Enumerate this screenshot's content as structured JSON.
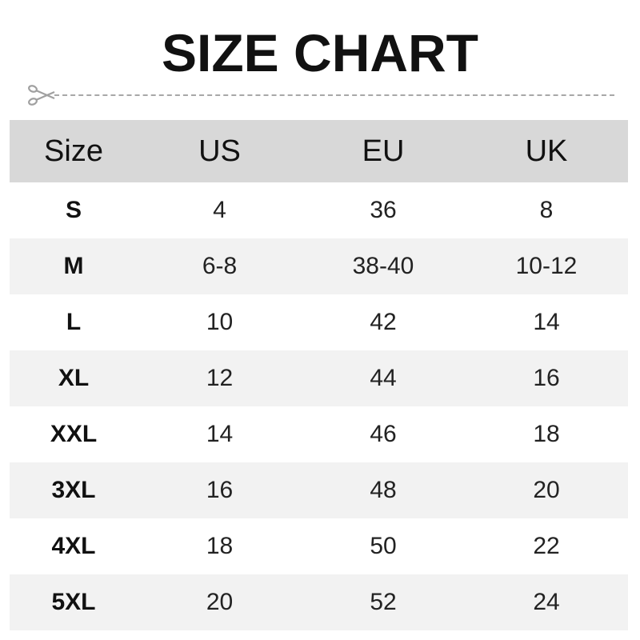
{
  "title": "SIZE CHART",
  "icons": {
    "cut": "scissors-icon"
  },
  "colors": {
    "header_bg": "#d8d8d8",
    "alt_row_bg": "#f2f2f2",
    "cutline": "#a8a8a8"
  },
  "table": {
    "headers": [
      "Size",
      "US",
      "EU",
      "UK"
    ],
    "rows": [
      [
        "S",
        "4",
        "36",
        "8"
      ],
      [
        "M",
        "6-8",
        "38-40",
        "10-12"
      ],
      [
        "L",
        "10",
        "42",
        "14"
      ],
      [
        "XL",
        "12",
        "44",
        "16"
      ],
      [
        "XXL",
        "14",
        "46",
        "18"
      ],
      [
        "3XL",
        "16",
        "48",
        "20"
      ],
      [
        "4XL",
        "18",
        "50",
        "22"
      ],
      [
        "5XL",
        "20",
        "52",
        "24"
      ]
    ]
  }
}
